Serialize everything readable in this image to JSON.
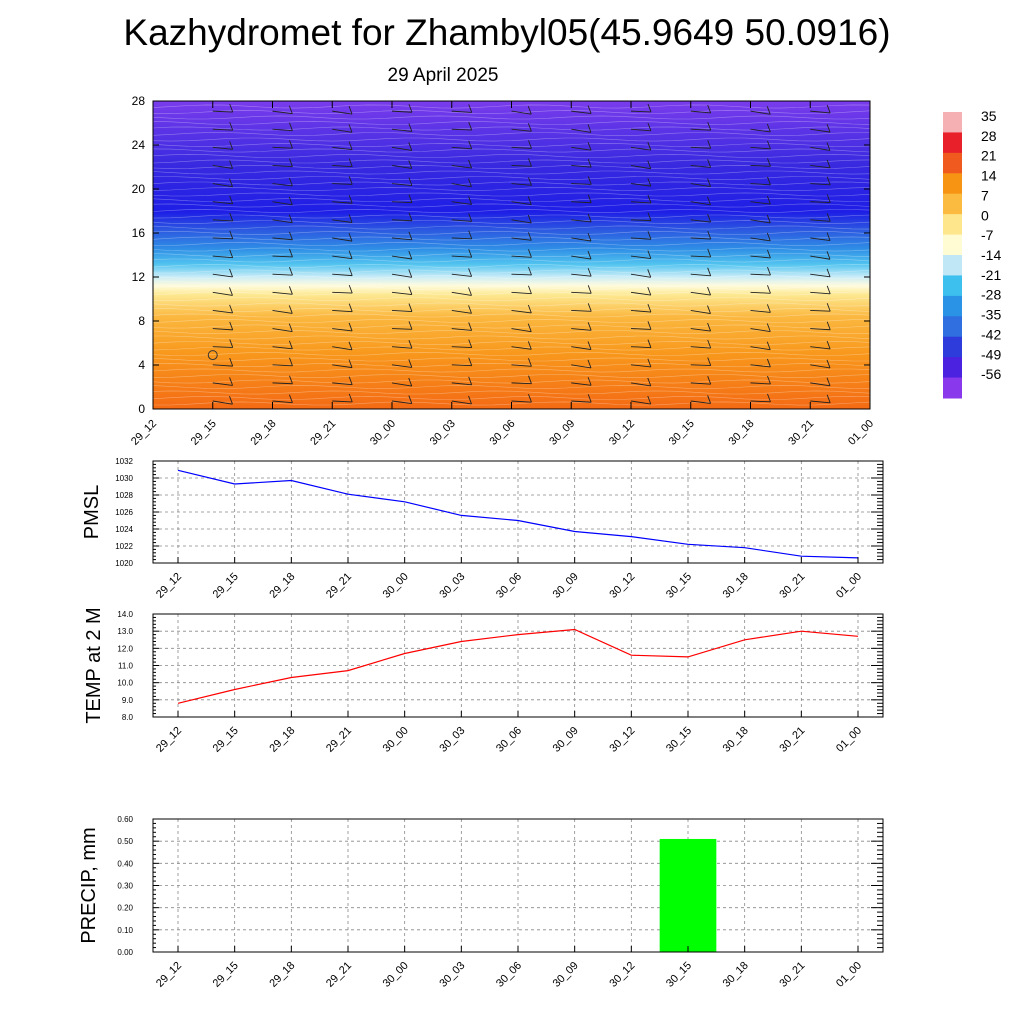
{
  "header": {
    "title": "Kazhydromet for Zhambyl05(45.9649 50.0916)",
    "subtitle": "29 April 2025"
  },
  "chart_data": [
    {
      "type": "heatmap",
      "description_key": "cross_section",
      "x": [
        "29_12",
        "29_15",
        "29_18",
        "29_21",
        "30_00",
        "30_03",
        "30_06",
        "30_09",
        "30_12",
        "30_15",
        "30_18",
        "30_21",
        "01_00"
      ],
      "yticks": [
        "0",
        "4",
        "8",
        "12",
        "16",
        "20",
        "24",
        "28"
      ],
      "ylim": [
        0,
        28
      ],
      "colorbar": {
        "labels": [
          "35",
          "28",
          "21",
          "14",
          "7",
          "0",
          "-7",
          "-14",
          "-21",
          "-28",
          "-35",
          "-42",
          "-49",
          "-56"
        ],
        "colors": [
          "#f5b0b4",
          "#e8202a",
          "#f05a1e",
          "#f79414",
          "#fbbb40",
          "#fde68c",
          "#fffbd2",
          "#bfe7f5",
          "#3ec0ee",
          "#2a93e6",
          "#2f6fe0",
          "#2e3cdc",
          "#4a22e0",
          "#8a38ec"
        ]
      }
    },
    {
      "type": "line",
      "ylabel": "PMSL",
      "x": [
        "29_12",
        "29_15",
        "29_18",
        "29_21",
        "30_00",
        "30_03",
        "30_06",
        "30_09",
        "30_12",
        "30_15",
        "30_18",
        "30_21",
        "01_00"
      ],
      "series": [
        {
          "values": [
            1030.9,
            1029.3,
            1029.7,
            1028.1,
            1027.2,
            1025.6,
            1025.0,
            1023.7,
            1023.1,
            1022.2,
            1021.8,
            1020.8,
            1020.6
          ],
          "color": "#0000ff"
        }
      ],
      "yticks": [
        "1020",
        "1022",
        "1024",
        "1026",
        "1028",
        "1030",
        "1032"
      ],
      "ylim": [
        1020,
        1032
      ]
    },
    {
      "type": "line",
      "ylabel": "TEMP at 2 M",
      "x": [
        "29_12",
        "29_15",
        "29_18",
        "29_21",
        "30_00",
        "30_03",
        "30_06",
        "30_09",
        "30_12",
        "30_15",
        "30_18",
        "30_21",
        "01_00"
      ],
      "series": [
        {
          "values": [
            8.8,
            9.6,
            10.3,
            10.7,
            11.7,
            12.4,
            12.8,
            13.1,
            11.6,
            11.5,
            12.5,
            13.0,
            12.7
          ],
          "color": "#ff0000"
        }
      ],
      "yticks": [
        "8.0",
        "9.0",
        "10.0",
        "11.0",
        "12.0",
        "13.0",
        "14.0"
      ],
      "ylim": [
        8,
        14
      ]
    },
    {
      "type": "bar",
      "ylabel": "PRECIP, mm",
      "x": [
        "29_12",
        "29_15",
        "29_18",
        "29_21",
        "30_00",
        "30_03",
        "30_06",
        "30_09",
        "30_12",
        "30_15",
        "30_18",
        "30_21",
        "01_00"
      ],
      "values": [
        0,
        0,
        0,
        0,
        0,
        0,
        0,
        0,
        0,
        0.51,
        0,
        0,
        0
      ],
      "color": "#00ff00",
      "yticks": [
        "0.00",
        "0.10",
        "0.20",
        "0.30",
        "0.40",
        "0.50",
        "0.60"
      ],
      "ylim": [
        0,
        0.6
      ]
    }
  ]
}
